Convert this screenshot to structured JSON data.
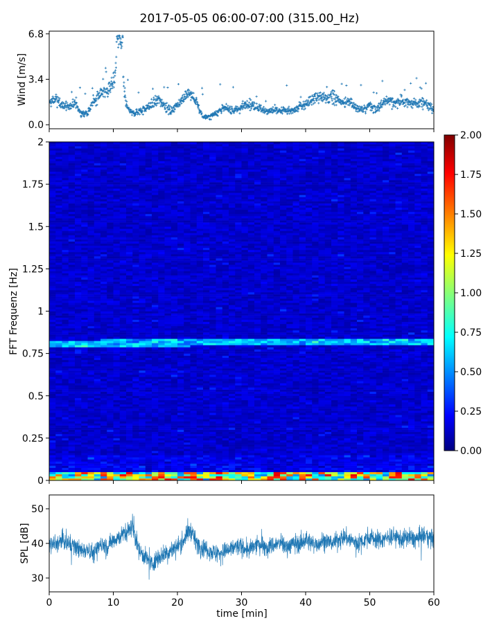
{
  "figure": {
    "title": "2017-05-05 06:00-07:00 (315.00_Hz)"
  },
  "colors": {
    "wind_marker": "#1f77b4",
    "spl_line": "#1f77b4",
    "jet": [
      "#000080",
      "#0000ff",
      "#00ffff",
      "#ffff00",
      "#ff0000",
      "#800000"
    ]
  },
  "chart_data": [
    {
      "id": "wind",
      "type": "scatter",
      "marker": "plus",
      "ylabel": "Wind [m/s]",
      "xlim": [
        0,
        60
      ],
      "ylim": [
        -0.3,
        7.0
      ],
      "yticks": [
        0.0,
        3.4,
        6.8
      ],
      "ytick_labels": [
        "0.0",
        "3.4",
        "6.8"
      ],
      "series": [
        {
          "values_sampled_every_minute": {
            "x": [
              0,
              1,
              2,
              3,
              4,
              5,
              6,
              7,
              8,
              9,
              10,
              11,
              12,
              13,
              14,
              15,
              16,
              17,
              18,
              19,
              20,
              21,
              22,
              23,
              24,
              25,
              26,
              27,
              28,
              29,
              30,
              31,
              32,
              33,
              34,
              35,
              36,
              37,
              38,
              39,
              40,
              41,
              42,
              43,
              44,
              45,
              46,
              47,
              48,
              49,
              50,
              51,
              52,
              53,
              54,
              55,
              56,
              57,
              58,
              59,
              60
            ],
            "y": [
              1.6,
              1.9,
              1.5,
              1.3,
              1.6,
              0.8,
              0.9,
              1.8,
              2.3,
              2.6,
              3.3,
              6.0,
              1.4,
              0.8,
              1.0,
              1.2,
              1.5,
              1.9,
              1.5,
              1.0,
              1.6,
              2.1,
              2.3,
              1.6,
              0.6,
              0.6,
              0.9,
              1.2,
              1.2,
              1.1,
              1.3,
              1.6,
              1.4,
              1.2,
              1.0,
              1.1,
              1.0,
              1.1,
              1.0,
              1.3,
              1.6,
              1.9,
              2.0,
              2.0,
              2.1,
              1.9,
              1.6,
              1.8,
              1.2,
              1.1,
              1.5,
              1.1,
              1.6,
              1.9,
              1.6,
              1.8,
              1.7,
              1.6,
              1.7,
              1.5,
              1.1
            ]
          }
        }
      ]
    },
    {
      "id": "spectrogram",
      "type": "heatmap",
      "ylabel": "FFT Frequenz [Hz]",
      "xlim": [
        0,
        60
      ],
      "ylim": [
        0,
        2
      ],
      "yticks": [
        0,
        0.25,
        0.5,
        0.75,
        1,
        1.25,
        1.5,
        1.75,
        2
      ],
      "ytick_labels": [
        "0",
        "0.25",
        "0.5",
        "0.75",
        "1",
        "1.25",
        "1.5",
        "1.75",
        "2"
      ],
      "colormap": "jet",
      "clim": [
        0.0,
        2.0
      ],
      "colorbar_ticks": [
        0.0,
        0.25,
        0.5,
        0.75,
        1.0,
        1.25,
        1.5,
        1.75,
        2.0
      ],
      "colorbar_tick_labels": [
        "0.00",
        "0.25",
        "0.50",
        "0.75",
        "1.00",
        "1.25",
        "1.50",
        "1.75",
        "2.00"
      ],
      "features": {
        "background_level": 0.15,
        "tonal_line": {
          "freq_start": 0.81,
          "freq_end": 0.82,
          "level": 0.6
        },
        "low_frequency_band": {
          "freq_max": 0.05,
          "level": 1.2
        }
      }
    },
    {
      "id": "spl",
      "type": "line",
      "xlabel": "time [min]",
      "ylabel": "SPL [dB]",
      "xlim": [
        0,
        60
      ],
      "ylim": [
        26,
        54
      ],
      "xticks": [
        0,
        10,
        20,
        30,
        40,
        50,
        60
      ],
      "xtick_labels": [
        "0",
        "10",
        "20",
        "30",
        "40",
        "50",
        "60"
      ],
      "yticks": [
        30,
        40,
        50
      ],
      "ytick_labels": [
        "30",
        "40",
        "50"
      ],
      "series": [
        {
          "values_sampled_every_minute": {
            "x": [
              0,
              1,
              2,
              3,
              4,
              5,
              6,
              7,
              8,
              9,
              10,
              11,
              12,
              13,
              14,
              15,
              16,
              17,
              18,
              19,
              20,
              21,
              22,
              23,
              24,
              25,
              26,
              27,
              28,
              29,
              30,
              31,
              32,
              33,
              34,
              35,
              36,
              37,
              38,
              39,
              40,
              41,
              42,
              43,
              44,
              45,
              46,
              47,
              48,
              49,
              50,
              51,
              52,
              53,
              54,
              55,
              56,
              57,
              58,
              59,
              60
            ],
            "y": [
              40,
              39.5,
              41,
              40,
              39,
              38,
              38.5,
              37,
              40,
              39,
              41,
              42,
              43,
              45,
              38,
              36,
              34,
              36,
              37,
              38,
              39,
              41,
              44,
              40,
              39,
              38,
              37,
              37.5,
              38,
              39,
              39,
              38,
              39,
              40,
              39,
              39.5,
              40,
              39,
              40,
              40,
              41,
              40,
              40,
              41,
              40,
              41,
              42,
              41,
              40,
              41,
              42,
              41,
              41,
              42,
              42,
              41,
              42,
              41,
              42,
              42,
              41
            ]
          }
        }
      ]
    }
  ]
}
